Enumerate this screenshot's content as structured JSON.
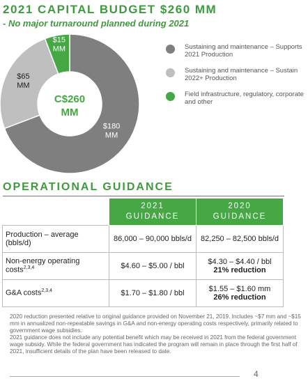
{
  "chart_data": {
    "type": "pie",
    "donut": true,
    "title": "2021 CAPITAL BUDGET $260 MM",
    "subtitle": "- No major turnaround planned during 2021",
    "center_label": "C$260 MM",
    "categories": [
      "Sustaining and maintenance – Supports 2021 Production",
      "Sustaining and maintenance – Sustain 2022+ Production",
      "Field infrastructure, regulatory, corporate and other"
    ],
    "values": [
      180,
      65,
      15
    ],
    "value_labels": [
      "$180 MM",
      "$65 MM",
      "$15 MM"
    ],
    "colors": [
      "#7f7f7f",
      "#bfbfbf",
      "#45a845"
    ]
  },
  "table": {
    "title": "OPERATIONAL GUIDANCE",
    "headers": [
      "2021 GUIDANCE",
      "2020 GUIDANCE"
    ],
    "rows": [
      {
        "label": "Production – average (bbls/d)",
        "cells": [
          {
            "text": "86,000 – 90,000 bbls/d"
          },
          {
            "text": "82,250 – 82,500 bbls/d"
          }
        ]
      },
      {
        "label": "Non-energy operating costs",
        "note": "2,3,4",
        "cells": [
          {
            "text": "$4.60 – $5.00 / bbl"
          },
          {
            "text": "$4.30 – $4.40 / bbl",
            "emphasis": "21% reduction"
          }
        ]
      },
      {
        "label": "G&A costs",
        "note": "2,3,4",
        "cells": [
          {
            "text": "$1.70 – $1.80 / bbl"
          },
          {
            "text": "$1.55 – $1.60 mm",
            "emphasis": "26% reduction"
          }
        ]
      }
    ]
  },
  "footnotes": [
    "2020 reduction presented relative to original guidance provided on November 21, 2019. Includes ~$7 mm and ~$15 mm in annualized non-repeatable savings in G&A and non-energy operating costs respectively, primarily related to government wage subsidies.",
    "2021 guidance does not include any potential benefit which may be received in 2021 from the federal government wage subsidy. While the federal government has indicated the program will remain in place through the first half of 2021, insufficient details of the plan have been released to date."
  ],
  "page_number": "4"
}
